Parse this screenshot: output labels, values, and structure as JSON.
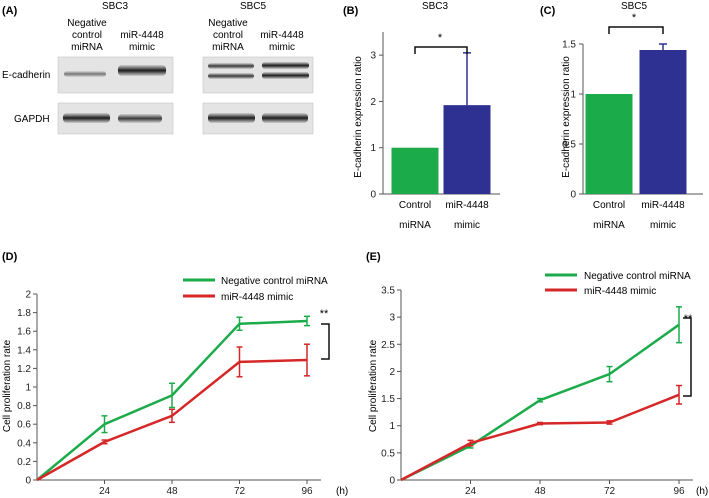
{
  "colors": {
    "green": "#1bab4b",
    "blue": "#2f3192",
    "red": "#d62728",
    "axis": "#555555",
    "text": "#222222"
  },
  "panelA": {
    "label": "(A)",
    "cell_lines": [
      "SBC3",
      "SBC5"
    ],
    "lane_labels": [
      {
        "line1": "Negative",
        "line2": "control",
        "line3": "miRNA"
      },
      {
        "line1": "miR-4448",
        "line2": "mimic"
      },
      {
        "line1": "Negative",
        "line2": "control",
        "line3": "miRNA"
      },
      {
        "line1": "miR-4448",
        "line2": "mimic"
      }
    ],
    "row_labels": [
      "E-cadherin",
      "GAPDH"
    ]
  },
  "chart_data": [
    {
      "id": "B",
      "type": "bar",
      "panel_label": "(B)",
      "title": "SBC3",
      "ylabel": "E-cadherin expression ratio",
      "categories": [
        [
          "Control",
          "miRNA"
        ],
        [
          "miR-4448",
          "mimic"
        ]
      ],
      "values": [
        1.0,
        1.92
      ],
      "errors": [
        0,
        1.13
      ],
      "bar_colors": [
        "#1bab4b",
        "#2f3192"
      ],
      "ylim": [
        0,
        3.5
      ],
      "yticks": [
        0,
        1,
        2,
        3
      ],
      "ytick_labels": [
        "0",
        "1",
        "2",
        "3"
      ],
      "significance": "*"
    },
    {
      "id": "C",
      "type": "bar",
      "panel_label": "(C)",
      "title": "SBC5",
      "ylabel": "E-cadherin expression ratio",
      "categories": [
        [
          "Control",
          "miRNA"
        ],
        [
          "miR-4448",
          "mimic"
        ]
      ],
      "values": [
        1.0,
        1.44
      ],
      "errors": [
        0,
        0.06
      ],
      "bar_colors": [
        "#1bab4b",
        "#2f3192"
      ],
      "ylim": [
        0,
        1.5
      ],
      "yticks": [
        0,
        0.5,
        1,
        1.5
      ],
      "ytick_labels": [
        "0",
        "0.5",
        "1",
        "1.5"
      ],
      "significance": "*"
    },
    {
      "id": "D",
      "type": "line",
      "panel_label": "(D)",
      "ylabel": "Cell proliferation rate",
      "xlabel": "(h)",
      "x": [
        0,
        24,
        48,
        72,
        96
      ],
      "xtick_labels": [
        "24",
        "48",
        "72",
        "96"
      ],
      "ylim": [
        0,
        2
      ],
      "yticks": [
        0,
        0.2,
        0.4,
        0.6,
        0.8,
        1,
        1.2,
        1.4,
        1.6,
        1.8,
        2
      ],
      "ytick_labels": [
        "0",
        "0.2",
        "0.4",
        "0.6",
        "0.8",
        "1",
        "1.2",
        "1.4",
        "1.6",
        "1.8",
        "2"
      ],
      "series": [
        {
          "name": "Negative control miRNA",
          "color": "#1bab4b",
          "values": [
            0,
            0.6,
            0.91,
            1.68,
            1.71
          ],
          "errors": [
            0,
            0.09,
            0.13,
            0.07,
            0.05
          ]
        },
        {
          "name": "miR-4448 mimic",
          "color": "#d62728",
          "values": [
            0,
            0.41,
            0.69,
            1.27,
            1.29
          ],
          "errors": [
            0,
            0.02,
            0.07,
            0.16,
            0.17
          ]
        }
      ],
      "significance": "**"
    },
    {
      "id": "E",
      "type": "line",
      "panel_label": "(E)",
      "ylabel": "Cell proliferation rate",
      "xlabel": "(h)",
      "x": [
        0,
        24,
        48,
        72,
        96
      ],
      "xtick_labels": [
        "24",
        "48",
        "72",
        "96"
      ],
      "ylim": [
        0,
        3.5
      ],
      "yticks": [
        0,
        0.5,
        1,
        1.5,
        2,
        2.5,
        3,
        3.5
      ],
      "ytick_labels": [
        "0",
        "0.5",
        "1",
        "1.5",
        "2",
        "2.5",
        "3",
        "3.5"
      ],
      "series": [
        {
          "name": "Negative control miRNA",
          "color": "#1bab4b",
          "values": [
            0,
            0.63,
            1.47,
            1.95,
            2.86
          ],
          "errors": [
            0,
            0.04,
            0.03,
            0.14,
            0.33
          ]
        },
        {
          "name": "miR-4448 mimic",
          "color": "#d62728",
          "values": [
            0,
            0.68,
            1.04,
            1.06,
            1.57
          ],
          "errors": [
            0,
            0.05,
            0.02,
            0.03,
            0.17
          ]
        }
      ],
      "significance": "**"
    }
  ]
}
